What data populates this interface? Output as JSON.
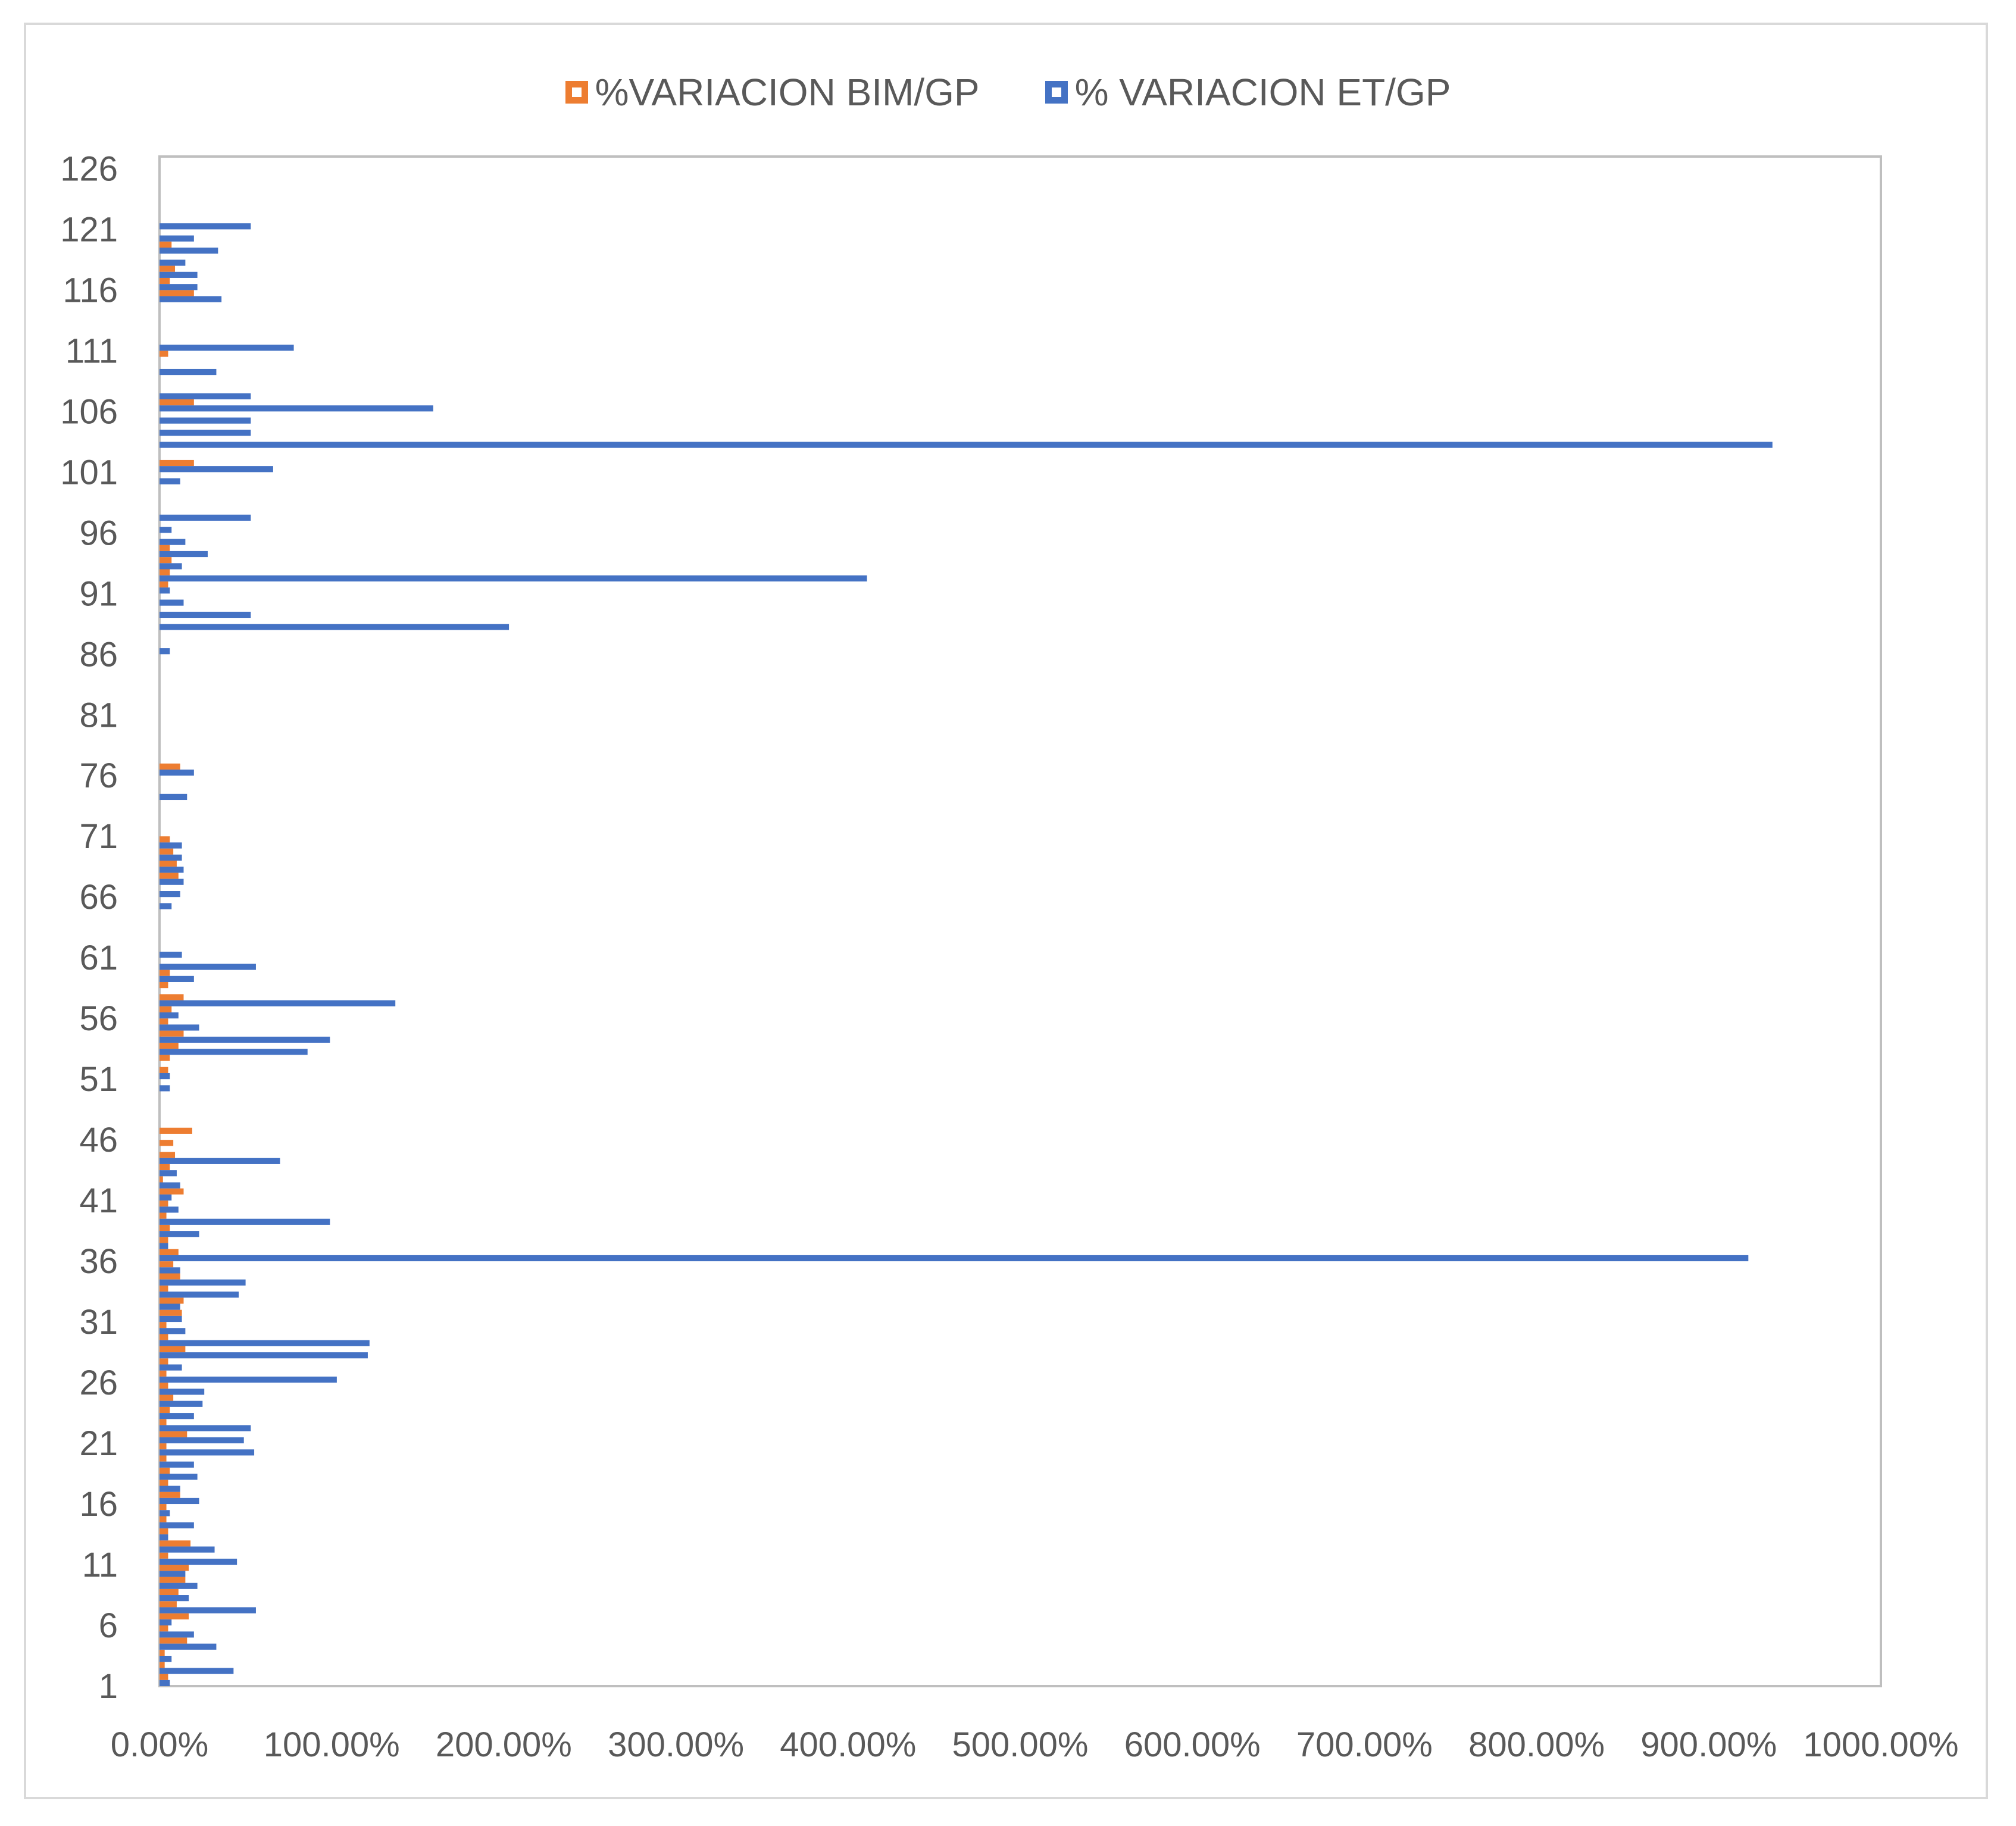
{
  "chart_data": {
    "type": "bar",
    "orientation": "horizontal",
    "title": "",
    "xlabel": "",
    "ylabel": "",
    "xlim": [
      0,
      1000
    ],
    "ylim": [
      1,
      127
    ],
    "grid": false,
    "legend_position": "top",
    "x_ticks": [
      "0.00%",
      "100.00%",
      "200.00%",
      "300.00%",
      "400.00%",
      "500.00%",
      "600.00%",
      "700.00%",
      "800.00%",
      "900.00%",
      "1000.00%"
    ],
    "y_ticks": [
      "1",
      "6",
      "11",
      "16",
      "21",
      "26",
      "31",
      "36",
      "41",
      "46",
      "51",
      "56",
      "61",
      "66",
      "71",
      "76",
      "81",
      "86",
      "91",
      "96",
      "101",
      "106",
      "111",
      "116",
      "121",
      "126"
    ],
    "categories": [
      1,
      2,
      3,
      4,
      5,
      6,
      7,
      8,
      9,
      10,
      11,
      12,
      13,
      14,
      15,
      16,
      17,
      18,
      19,
      20,
      21,
      22,
      23,
      24,
      25,
      26,
      27,
      28,
      29,
      30,
      31,
      32,
      33,
      34,
      35,
      36,
      37,
      38,
      39,
      40,
      41,
      42,
      43,
      44,
      45,
      46,
      47,
      48,
      49,
      50,
      51,
      52,
      53,
      54,
      55,
      56,
      57,
      58,
      59,
      60,
      61,
      62,
      63,
      64,
      65,
      66,
      67,
      68,
      69,
      70,
      71,
      72,
      73,
      74,
      75,
      76,
      77,
      78,
      79,
      80,
      81,
      82,
      83,
      84,
      85,
      86,
      87,
      88,
      89,
      90,
      91,
      92,
      93,
      94,
      95,
      96,
      97,
      98,
      99,
      100,
      101,
      102,
      103,
      104,
      105,
      106,
      107,
      108,
      109,
      110,
      111,
      112,
      113,
      114,
      115,
      116,
      117,
      118,
      119,
      120,
      121,
      122,
      123,
      124,
      125,
      126
    ],
    "series": [
      {
        "name": "%VARIACION BIM/GP",
        "color": "#ED7D31",
        "values": [
          5,
          3,
          3,
          16,
          5,
          17,
          10,
          11,
          15,
          17,
          5,
          18,
          5,
          4,
          4,
          12,
          5,
          6,
          4,
          4,
          16,
          4,
          6,
          8,
          5,
          4,
          5,
          15,
          5,
          4,
          13,
          14,
          5,
          12,
          8,
          11,
          5,
          6,
          4,
          5,
          14,
          2,
          6,
          9,
          8,
          19,
          0,
          0,
          0,
          0,
          5,
          6,
          11,
          14,
          5,
          7,
          14,
          5,
          6,
          0,
          0,
          0,
          0,
          0,
          0,
          0,
          11,
          10,
          8,
          6,
          0,
          0,
          0,
          0,
          0,
          12,
          0,
          0,
          0,
          0,
          0,
          0,
          0,
          0,
          0,
          0,
          0,
          0,
          0,
          0,
          5,
          6,
          7,
          6,
          0,
          0,
          0,
          0,
          0,
          0,
          20,
          0,
          0,
          0,
          0,
          20,
          0,
          0,
          0,
          5,
          0,
          0,
          0,
          0,
          20,
          6,
          9,
          0,
          7,
          0,
          0,
          0,
          0,
          0,
          0,
          0
        ]
      },
      {
        "name": "% VARIACION ET/GP",
        "color": "#4472C4",
        "values": [
          6,
          43,
          7,
          33,
          20,
          7,
          56,
          17,
          22,
          15,
          45,
          32,
          5,
          20,
          6,
          23,
          12,
          22,
          20,
          55,
          49,
          53,
          20,
          25,
          26,
          103,
          13,
          121,
          122,
          15,
          13,
          12,
          46,
          50,
          12,
          923,
          5,
          23,
          99,
          11,
          7,
          12,
          10,
          70,
          0,
          0,
          0,
          0,
          0,
          6,
          6,
          0,
          86,
          99,
          23,
          11,
          137,
          0,
          20,
          56,
          13,
          0,
          0,
          0,
          7,
          12,
          14,
          14,
          13,
          13,
          0,
          0,
          0,
          16,
          0,
          20,
          0,
          0,
          0,
          0,
          0,
          0,
          0,
          0,
          0,
          6,
          0,
          203,
          53,
          14,
          6,
          411,
          13,
          28,
          15,
          7,
          53,
          0,
          0,
          12,
          66,
          0,
          937,
          53,
          53,
          159,
          53,
          0,
          33,
          0,
          78,
          0,
          0,
          0,
          36,
          22,
          22,
          15,
          34,
          20,
          53,
          0,
          0,
          0,
          0,
          0
        ]
      }
    ]
  },
  "legend": {
    "items": [
      {
        "label": "%VARIACION BIM/GP",
        "color": "#ED7D31"
      },
      {
        "label": "% VARIACION ET/GP",
        "color": "#4472C4"
      }
    ]
  },
  "style": {
    "axis_color": "#bfbfbf",
    "text_color": "#595959",
    "frame_color": "#d9d9d9"
  }
}
